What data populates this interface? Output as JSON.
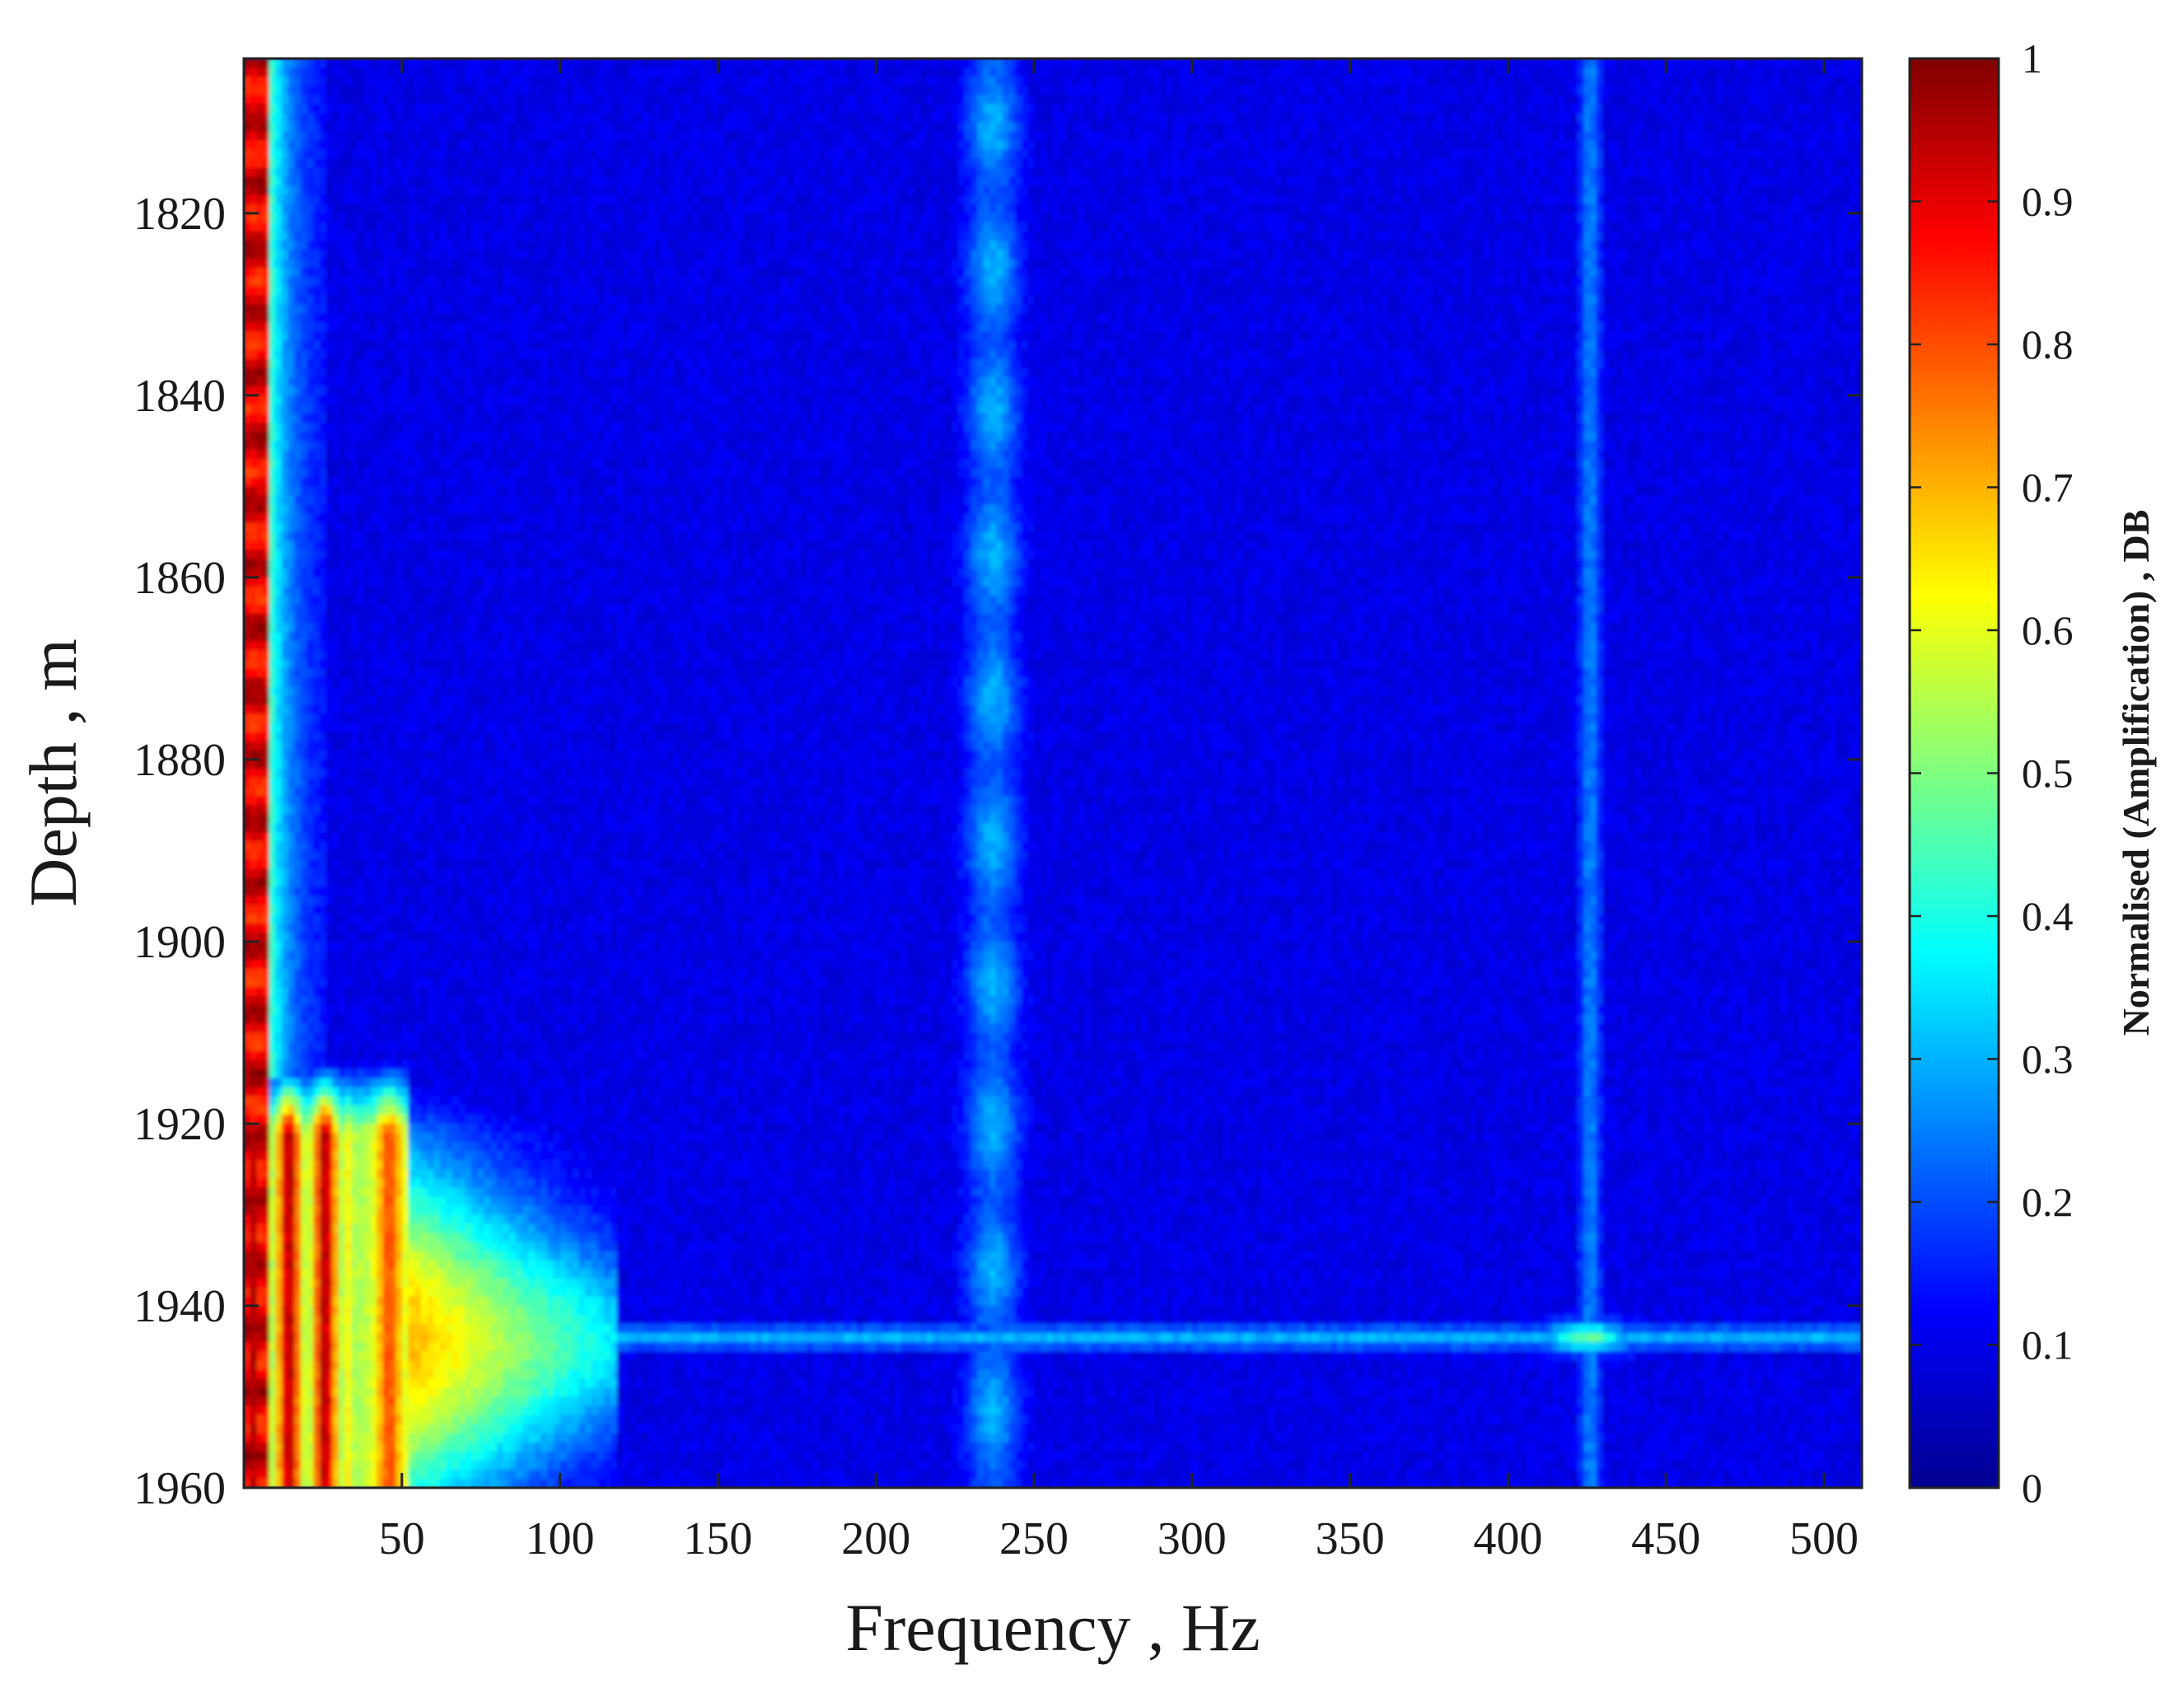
{
  "chart_data": {
    "type": "heatmap",
    "title": "",
    "xlabel": "Frequency , Hz",
    "ylabel": "Depth , m",
    "xlim": [
      0,
      512
    ],
    "ylim": [
      1960,
      1803
    ],
    "y_axis_inverted": true,
    "x_ticks": [
      50,
      100,
      150,
      200,
      250,
      300,
      350,
      400,
      450,
      500
    ],
    "x_tick_labels": [
      "50",
      "100",
      "150",
      "200",
      "250",
      "300",
      "350",
      "400",
      "450",
      "500"
    ],
    "y_ticks": [
      1820,
      1840,
      1860,
      1880,
      1900,
      1920,
      1940,
      1960
    ],
    "y_tick_labels": [
      "1820",
      "1840",
      "1860",
      "1880",
      "1900",
      "1920",
      "1940",
      "1960"
    ],
    "colorbar": {
      "label": "Normalised (Amplification) , DB",
      "range": [
        0,
        1
      ],
      "ticks": [
        0,
        0.1,
        0.2,
        0.3,
        0.4,
        0.5,
        0.6,
        0.7,
        0.8,
        0.9,
        1
      ],
      "tick_labels": [
        "0",
        "0.1",
        "0.2",
        "0.3",
        "0.4",
        "0.5",
        "0.6",
        "0.7",
        "0.8",
        "0.9",
        "1"
      ],
      "colormap": "jet"
    },
    "background_value": 0.08,
    "features": [
      {
        "name": "low-frequency band",
        "x_range": [
          0,
          8
        ],
        "y_range": [
          1803,
          1960
        ],
        "value": 0.95
      },
      {
        "name": "low-frequency fringe",
        "x_range": [
          8,
          25
        ],
        "y_range": [
          1803,
          1915
        ],
        "value": 0.35
      },
      {
        "name": "high-amplitude zone",
        "x_range": [
          0,
          50
        ],
        "y_range": [
          1915,
          1960
        ],
        "value": 0.85
      },
      {
        "name": "mid-amplitude zone",
        "x_range": [
          50,
          115
        ],
        "y_range": [
          1930,
          1960
        ],
        "value": 0.45
      },
      {
        "name": "vertical band",
        "x_center": 237,
        "width": 25,
        "y_range": [
          1803,
          1960
        ],
        "value": 0.28
      },
      {
        "name": "vertical band",
        "x_center": 426,
        "width": 12,
        "y_range": [
          1803,
          1960
        ],
        "value": 0.22
      },
      {
        "name": "horizontal band",
        "y_center": 1943,
        "height": 3,
        "x_range": [
          115,
          512
        ],
        "value": 0.3
      },
      {
        "name": "hot spot",
        "x_center": 425,
        "y_center": 1943,
        "value": 0.45
      }
    ]
  }
}
